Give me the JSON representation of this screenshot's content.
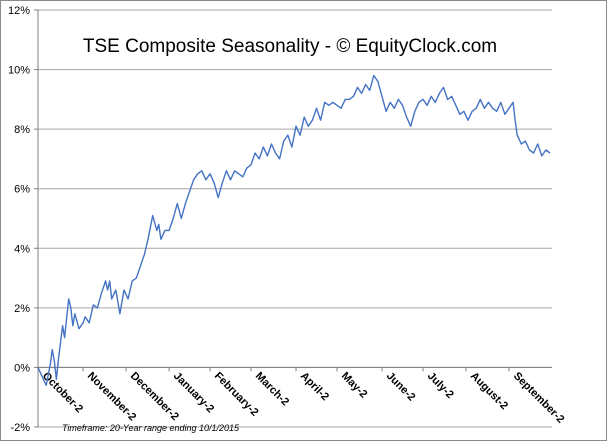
{
  "chart_data": {
    "type": "line",
    "title": "TSE Composite Seasonality - © EquityClock.com",
    "footnote": "Timeframe: 20-Year range ending 10/1/2015",
    "xlabel": "",
    "ylabel": "",
    "ylim": [
      -2,
      12
    ],
    "yticks": [
      -2,
      0,
      2,
      4,
      6,
      8,
      10,
      12
    ],
    "ytick_labels": [
      "-2%",
      "0%",
      "2%",
      "4%",
      "6%",
      "8%",
      "10%",
      "12%"
    ],
    "x_range": [
      0,
      251
    ],
    "xticks": [
      {
        "label": "October-2",
        "x": 0
      },
      {
        "label": "November-2",
        "x": 22
      },
      {
        "label": "December-2",
        "x": 43
      },
      {
        "label": "January-2",
        "x": 64
      },
      {
        "label": "February-2",
        "x": 84
      },
      {
        "label": "March-2",
        "x": 104
      },
      {
        "label": "April-2",
        "x": 126
      },
      {
        "label": "May-2",
        "x": 146
      },
      {
        "label": "June-2",
        "x": 168
      },
      {
        "label": "July-2",
        "x": 188
      },
      {
        "label": "August-2",
        "x": 209
      },
      {
        "label": "September-2",
        "x": 230
      }
    ],
    "grid": true,
    "line_color": "#4472c4",
    "series": [
      {
        "name": "",
        "points": [
          [
            0,
            0
          ],
          [
            2,
            -0.3
          ],
          [
            4,
            -0.6
          ],
          [
            6,
            0.1
          ],
          [
            7,
            0.6
          ],
          [
            8,
            0.2
          ],
          [
            9,
            -0.4
          ],
          [
            10,
            0.3
          ],
          [
            12,
            1.4
          ],
          [
            13,
            1.0
          ],
          [
            15,
            2.3
          ],
          [
            16,
            2.0
          ],
          [
            17,
            1.4
          ],
          [
            18,
            1.8
          ],
          [
            20,
            1.3
          ],
          [
            22,
            1.5
          ],
          [
            23,
            1.7
          ],
          [
            25,
            1.5
          ],
          [
            27,
            2.1
          ],
          [
            29,
            2.0
          ],
          [
            31,
            2.5
          ],
          [
            33,
            2.9
          ],
          [
            34,
            2.6
          ],
          [
            35,
            2.9
          ],
          [
            36,
            2.3
          ],
          [
            38,
            2.6
          ],
          [
            40,
            1.8
          ],
          [
            42,
            2.6
          ],
          [
            44,
            2.3
          ],
          [
            46,
            2.9
          ],
          [
            48,
            3.0
          ],
          [
            50,
            3.4
          ],
          [
            52,
            3.8
          ],
          [
            54,
            4.4
          ],
          [
            56,
            5.1
          ],
          [
            58,
            4.6
          ],
          [
            59,
            4.8
          ],
          [
            60,
            4.3
          ],
          [
            62,
            4.6
          ],
          [
            64,
            4.6
          ],
          [
            66,
            5.0
          ],
          [
            68,
            5.5
          ],
          [
            70,
            5.0
          ],
          [
            72,
            5.5
          ],
          [
            74,
            5.9
          ],
          [
            76,
            6.3
          ],
          [
            78,
            6.5
          ],
          [
            80,
            6.6
          ],
          [
            82,
            6.3
          ],
          [
            84,
            6.5
          ],
          [
            86,
            6.2
          ],
          [
            88,
            5.7
          ],
          [
            90,
            6.2
          ],
          [
            92,
            6.6
          ],
          [
            94,
            6.3
          ],
          [
            96,
            6.6
          ],
          [
            98,
            6.5
          ],
          [
            100,
            6.4
          ],
          [
            102,
            6.7
          ],
          [
            104,
            6.8
          ],
          [
            106,
            7.2
          ],
          [
            108,
            7.0
          ],
          [
            110,
            7.4
          ],
          [
            112,
            7.1
          ],
          [
            114,
            7.5
          ],
          [
            116,
            7.2
          ],
          [
            118,
            7.0
          ],
          [
            120,
            7.6
          ],
          [
            122,
            7.8
          ],
          [
            124,
            7.4
          ],
          [
            126,
            8.1
          ],
          [
            128,
            7.8
          ],
          [
            130,
            8.4
          ],
          [
            132,
            8.1
          ],
          [
            134,
            8.3
          ],
          [
            136,
            8.7
          ],
          [
            138,
            8.3
          ],
          [
            140,
            8.9
          ],
          [
            142,
            8.8
          ],
          [
            144,
            8.9
          ],
          [
            146,
            8.8
          ],
          [
            148,
            8.7
          ],
          [
            150,
            9.0
          ],
          [
            152,
            9.0
          ],
          [
            154,
            9.1
          ],
          [
            156,
            9.4
          ],
          [
            158,
            9.2
          ],
          [
            160,
            9.5
          ],
          [
            162,
            9.3
          ],
          [
            164,
            9.8
          ],
          [
            166,
            9.6
          ],
          [
            168,
            9.1
          ],
          [
            170,
            8.6
          ],
          [
            172,
            8.9
          ],
          [
            174,
            8.7
          ],
          [
            176,
            9.0
          ],
          [
            178,
            8.8
          ],
          [
            180,
            8.4
          ],
          [
            182,
            8.1
          ],
          [
            184,
            8.6
          ],
          [
            186,
            8.9
          ],
          [
            188,
            9.0
          ],
          [
            190,
            8.8
          ],
          [
            192,
            9.1
          ],
          [
            194,
            8.9
          ],
          [
            196,
            9.2
          ],
          [
            198,
            9.4
          ],
          [
            200,
            9.0
          ],
          [
            202,
            9.1
          ],
          [
            204,
            8.8
          ],
          [
            206,
            8.5
          ],
          [
            208,
            8.6
          ],
          [
            210,
            8.3
          ],
          [
            212,
            8.6
          ],
          [
            214,
            8.7
          ],
          [
            216,
            9.0
          ],
          [
            218,
            8.7
          ],
          [
            220,
            8.9
          ],
          [
            222,
            8.7
          ],
          [
            224,
            8.6
          ],
          [
            226,
            8.9
          ],
          [
            228,
            8.5
          ],
          [
            230,
            8.7
          ],
          [
            232,
            8.9
          ],
          [
            233,
            8.3
          ],
          [
            234,
            7.8
          ],
          [
            236,
            7.5
          ],
          [
            238,
            7.6
          ],
          [
            240,
            7.3
          ],
          [
            242,
            7.2
          ],
          [
            244,
            7.5
          ],
          [
            246,
            7.1
          ],
          [
            248,
            7.3
          ],
          [
            250,
            7.2
          ]
        ]
      }
    ]
  }
}
